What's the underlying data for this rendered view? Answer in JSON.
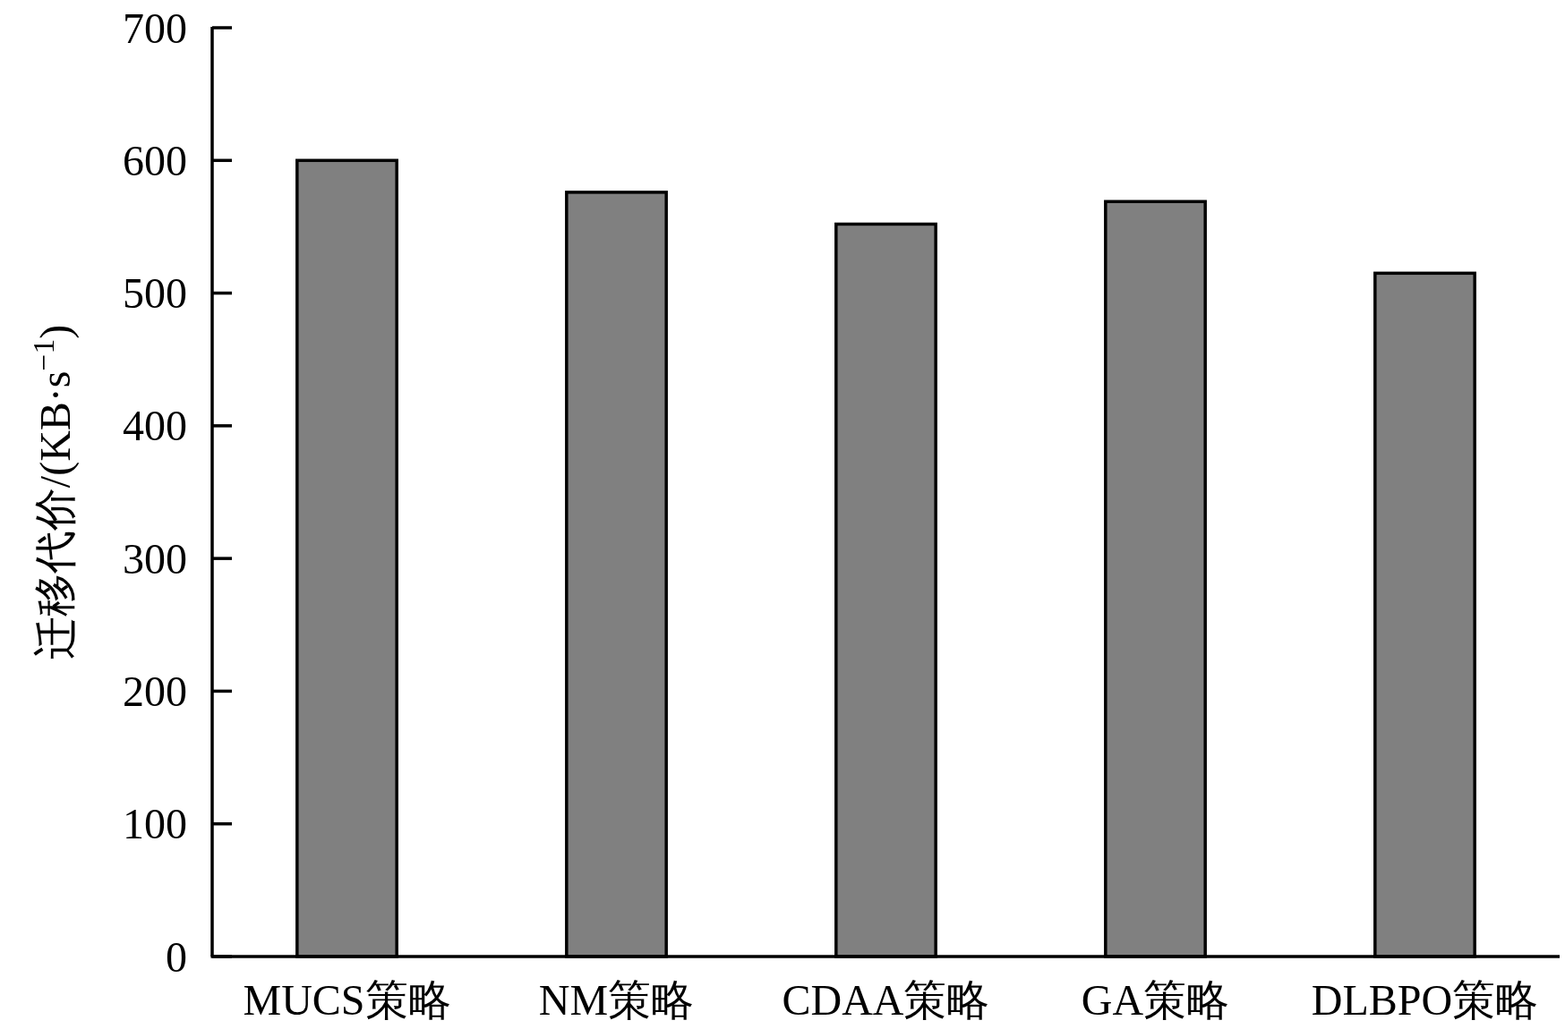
{
  "chart_data": {
    "type": "bar",
    "ylabel": "迁移代价/(KB·s$^{−1}$)",
    "categories": [
      "MUCS策略",
      "NM策略",
      "CDAA策略",
      "GA策略",
      "DLBPO策略"
    ],
    "values": [
      600,
      576,
      552,
      569,
      515
    ],
    "color": "#808080",
    "ylim": [
      0,
      700
    ],
    "yticks": [
      0,
      100,
      200,
      300,
      400,
      500,
      600,
      700
    ]
  }
}
